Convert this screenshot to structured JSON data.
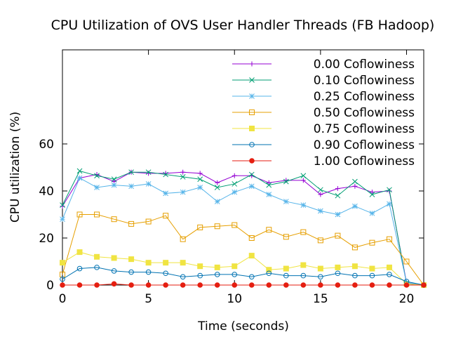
{
  "chart_data": {
    "type": "line",
    "title": "CPU Utilization of OVS User Handler Threads (FB Hadoop)",
    "xlabel": "Time (seconds)",
    "ylabel": "CPU utilization (%)",
    "xlim": [
      0,
      21
    ],
    "ylim": [
      0,
      100
    ],
    "xticks": [
      0,
      5,
      10,
      15,
      20
    ],
    "yticks": [
      0,
      20,
      40,
      60
    ],
    "x": [
      0,
      1,
      2,
      3,
      4,
      5,
      6,
      7,
      8,
      9,
      10,
      11,
      12,
      13,
      14,
      15,
      16,
      17,
      18,
      19,
      20,
      21
    ],
    "legend_position": "top-right",
    "grid": false,
    "series": [
      {
        "name": "0.00 Coflowiness",
        "color": "#9400d3",
        "marker": "plus",
        "values": [
          33.5,
          45.5,
          47,
          44,
          48,
          47.5,
          47.5,
          48,
          47.5,
          43.5,
          46.5,
          46.5,
          43.5,
          44.5,
          44.5,
          38.5,
          41,
          42,
          39.5,
          40,
          1,
          0
        ]
      },
      {
        "name": "0.10 Coflowiness",
        "color": "#009e73",
        "marker": "x",
        "values": [
          34,
          48.5,
          46.5,
          45,
          48,
          48,
          47,
          46,
          45,
          41.5,
          43,
          47,
          42.5,
          44,
          46.5,
          40.5,
          38,
          44,
          38.5,
          40.5,
          0.5,
          0
        ]
      },
      {
        "name": "0.25 Coflowiness",
        "color": "#56b4e9",
        "marker": "asterisk",
        "values": [
          28,
          45.5,
          41.5,
          42.5,
          42,
          43,
          39,
          39.5,
          41.5,
          35.5,
          39.5,
          42,
          38.5,
          35.5,
          34,
          31.5,
          30,
          33.5,
          30.5,
          34.5,
          1,
          0
        ]
      },
      {
        "name": "0.50 Coflowiness",
        "color": "#e69f00",
        "marker": "square-open",
        "values": [
          4.5,
          30,
          30,
          28,
          26,
          27,
          29.5,
          19.5,
          24.5,
          25,
          25.5,
          20,
          23.5,
          20.5,
          22.5,
          19,
          21,
          16,
          18,
          19.5,
          10,
          0
        ]
      },
      {
        "name": "0.75 Coflowiness",
        "color": "#f0e442",
        "marker": "square-filled",
        "values": [
          9.5,
          14,
          12,
          11.5,
          11,
          9.5,
          9.5,
          9.5,
          8,
          7.5,
          8,
          12.5,
          6.5,
          7,
          8.5,
          7,
          7.5,
          8,
          7,
          7.5,
          0.5,
          0
        ]
      },
      {
        "name": "0.90 Coflowiness",
        "color": "#0072b2",
        "marker": "circle-open",
        "values": [
          2.5,
          7,
          7.5,
          6,
          5.5,
          5.5,
          5,
          3.5,
          4,
          4.5,
          4.5,
          3.5,
          5,
          4,
          4,
          3.5,
          5,
          4,
          4,
          4.5,
          1.5,
          0
        ]
      },
      {
        "name": "1.00 Coflowiness",
        "color": "#e51e10",
        "marker": "circle-filled",
        "values": [
          0,
          0,
          0,
          0.5,
          0,
          0,
          0,
          0,
          0,
          0,
          0,
          0,
          0,
          0,
          0,
          0,
          0,
          0,
          0,
          0,
          0,
          0
        ]
      }
    ]
  }
}
